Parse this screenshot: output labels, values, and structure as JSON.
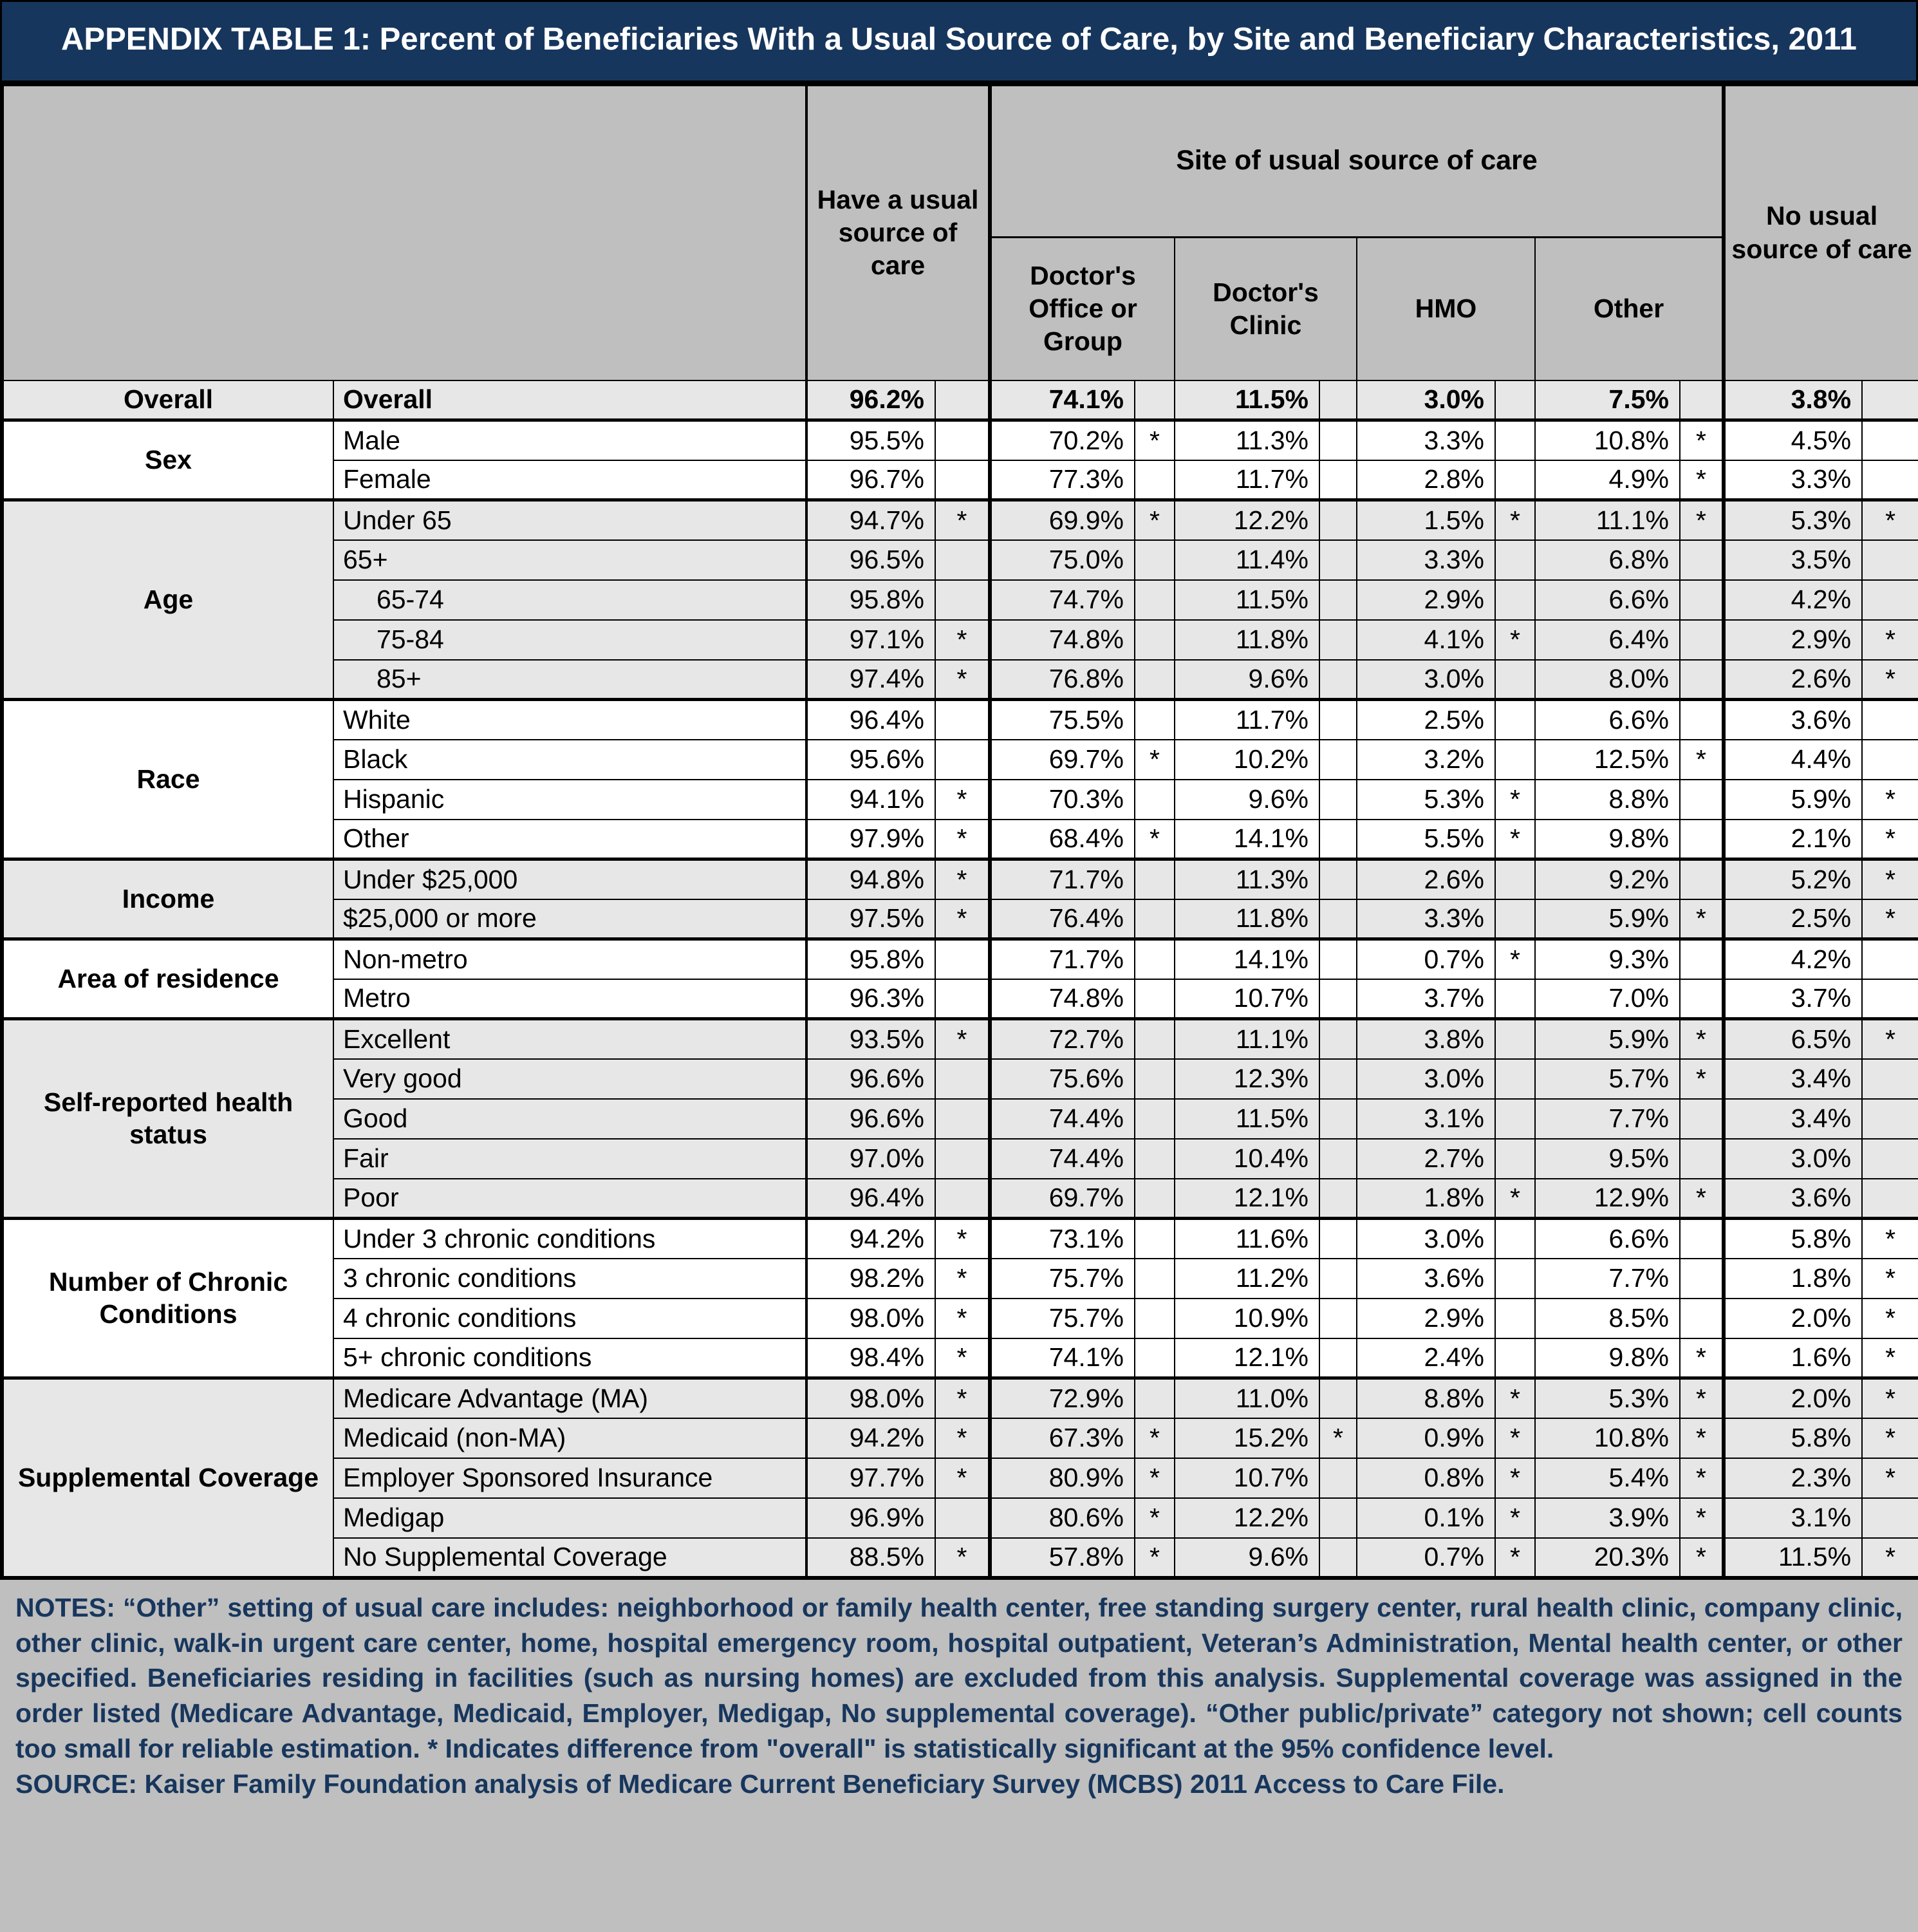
{
  "title": "APPENDIX TABLE 1: Percent of Beneficiaries With a Usual Source of Care, by Site and Beneficiary Characteristics, 2011",
  "colors": {
    "title_bg": "#17365D",
    "title_text": "#FFFFFF",
    "header_bg": "#BFBFBF",
    "shaded_row_bg": "#E7E7E7",
    "notes_bg": "#BFBFBF",
    "notes_text": "#17365D",
    "border": "#000000"
  },
  "table": {
    "header": {
      "usual": "Have a usual source of care",
      "site_group": "Site of usual source of care",
      "sites": [
        "Doctor's Office or Group",
        "Doctor's Clinic",
        "HMO",
        "Other"
      ],
      "no_usual": "No usual source of care"
    },
    "groups": [
      {
        "label": "Overall",
        "shaded": true,
        "rows": [
          {
            "label": "Overall",
            "bold": true,
            "values": [
              "96.2%",
              "74.1%",
              "11.5%",
              "3.0%",
              "7.5%",
              "3.8%"
            ],
            "stars": [
              "",
              "",
              "",
              "",
              "",
              ""
            ]
          }
        ]
      },
      {
        "label": "Sex",
        "shaded": false,
        "rows": [
          {
            "label": "Male",
            "values": [
              "95.5%",
              "70.2%",
              "11.3%",
              "3.3%",
              "10.8%",
              "4.5%"
            ],
            "stars": [
              "",
              "*",
              "",
              "",
              "*",
              ""
            ]
          },
          {
            "label": "Female",
            "values": [
              "96.7%",
              "77.3%",
              "11.7%",
              "2.8%",
              "4.9%",
              "3.3%"
            ],
            "stars": [
              "",
              "",
              "",
              "",
              "*",
              ""
            ]
          }
        ]
      },
      {
        "label": "Age",
        "shaded": true,
        "rows": [
          {
            "label": "Under 65",
            "values": [
              "94.7%",
              "69.9%",
              "12.2%",
              "1.5%",
              "11.1%",
              "5.3%"
            ],
            "stars": [
              "*",
              "*",
              "",
              "*",
              "*",
              "*"
            ]
          },
          {
            "label": "65+",
            "values": [
              "96.5%",
              "75.0%",
              "11.4%",
              "3.3%",
              "6.8%",
              "3.5%"
            ],
            "stars": [
              "",
              "",
              "",
              "",
              "",
              ""
            ]
          },
          {
            "label": "65-74",
            "indent": true,
            "values": [
              "95.8%",
              "74.7%",
              "11.5%",
              "2.9%",
              "6.6%",
              "4.2%"
            ],
            "stars": [
              "",
              "",
              "",
              "",
              "",
              ""
            ]
          },
          {
            "label": "75-84",
            "indent": true,
            "values": [
              "97.1%",
              "74.8%",
              "11.8%",
              "4.1%",
              "6.4%",
              "2.9%"
            ],
            "stars": [
              "*",
              "",
              "",
              "*",
              "",
              "*"
            ]
          },
          {
            "label": "85+",
            "indent": true,
            "values": [
              "97.4%",
              "76.8%",
              "9.6%",
              "3.0%",
              "8.0%",
              "2.6%"
            ],
            "stars": [
              "*",
              "",
              "",
              "",
              "",
              "*"
            ]
          }
        ]
      },
      {
        "label": "Race",
        "shaded": false,
        "rows": [
          {
            "label": "White",
            "values": [
              "96.4%",
              "75.5%",
              "11.7%",
              "2.5%",
              "6.6%",
              "3.6%"
            ],
            "stars": [
              "",
              "",
              "",
              "",
              "",
              ""
            ]
          },
          {
            "label": "Black",
            "values": [
              "95.6%",
              "69.7%",
              "10.2%",
              "3.2%",
              "12.5%",
              "4.4%"
            ],
            "stars": [
              "",
              "*",
              "",
              "",
              "*",
              ""
            ]
          },
          {
            "label": "Hispanic",
            "values": [
              "94.1%",
              "70.3%",
              "9.6%",
              "5.3%",
              "8.8%",
              "5.9%"
            ],
            "stars": [
              "*",
              "",
              "",
              "*",
              "",
              "*"
            ]
          },
          {
            "label": "Other",
            "values": [
              "97.9%",
              "68.4%",
              "14.1%",
              "5.5%",
              "9.8%",
              "2.1%"
            ],
            "stars": [
              "*",
              "*",
              "",
              "*",
              "",
              "*"
            ]
          }
        ]
      },
      {
        "label": "Income",
        "shaded": true,
        "rows": [
          {
            "label": "Under $25,000",
            "values": [
              "94.8%",
              "71.7%",
              "11.3%",
              "2.6%",
              "9.2%",
              "5.2%"
            ],
            "stars": [
              "*",
              "",
              "",
              "",
              "",
              "*"
            ]
          },
          {
            "label": "$25,000 or more",
            "values": [
              "97.5%",
              "76.4%",
              "11.8%",
              "3.3%",
              "5.9%",
              "2.5%"
            ],
            "stars": [
              "*",
              "",
              "",
              "",
              "*",
              "*"
            ]
          }
        ]
      },
      {
        "label": "Area of residence",
        "shaded": false,
        "rows": [
          {
            "label": "Non-metro",
            "values": [
              "95.8%",
              "71.7%",
              "14.1%",
              "0.7%",
              "9.3%",
              "4.2%"
            ],
            "stars": [
              "",
              "",
              "",
              "*",
              "",
              ""
            ]
          },
          {
            "label": "Metro",
            "values": [
              "96.3%",
              "74.8%",
              "10.7%",
              "3.7%",
              "7.0%",
              "3.7%"
            ],
            "stars": [
              "",
              "",
              "",
              "",
              "",
              ""
            ]
          }
        ]
      },
      {
        "label": "Self-reported health status",
        "shaded": true,
        "rows": [
          {
            "label": "Excellent",
            "values": [
              "93.5%",
              "72.7%",
              "11.1%",
              "3.8%",
              "5.9%",
              "6.5%"
            ],
            "stars": [
              "*",
              "",
              "",
              "",
              "*",
              "*"
            ]
          },
          {
            "label": "Very good",
            "values": [
              "96.6%",
              "75.6%",
              "12.3%",
              "3.0%",
              "5.7%",
              "3.4%"
            ],
            "stars": [
              "",
              "",
              "",
              "",
              "*",
              ""
            ]
          },
          {
            "label": "Good",
            "values": [
              "96.6%",
              "74.4%",
              "11.5%",
              "3.1%",
              "7.7%",
              "3.4%"
            ],
            "stars": [
              "",
              "",
              "",
              "",
              "",
              ""
            ]
          },
          {
            "label": "Fair",
            "values": [
              "97.0%",
              "74.4%",
              "10.4%",
              "2.7%",
              "9.5%",
              "3.0%"
            ],
            "stars": [
              "",
              "",
              "",
              "",
              "",
              ""
            ]
          },
          {
            "label": "Poor",
            "values": [
              "96.4%",
              "69.7%",
              "12.1%",
              "1.8%",
              "12.9%",
              "3.6%"
            ],
            "stars": [
              "",
              "",
              "",
              "*",
              "*",
              ""
            ]
          }
        ]
      },
      {
        "label": "Number of Chronic Conditions",
        "shaded": false,
        "rows": [
          {
            "label": "Under 3 chronic conditions",
            "values": [
              "94.2%",
              "73.1%",
              "11.6%",
              "3.0%",
              "6.6%",
              "5.8%"
            ],
            "stars": [
              "*",
              "",
              "",
              "",
              "",
              "*"
            ]
          },
          {
            "label": "3 chronic conditions",
            "values": [
              "98.2%",
              "75.7%",
              "11.2%",
              "3.6%",
              "7.7%",
              "1.8%"
            ],
            "stars": [
              "*",
              "",
              "",
              "",
              "",
              "*"
            ]
          },
          {
            "label": "4 chronic conditions",
            "values": [
              "98.0%",
              "75.7%",
              "10.9%",
              "2.9%",
              "8.5%",
              "2.0%"
            ],
            "stars": [
              "*",
              "",
              "",
              "",
              "",
              "*"
            ]
          },
          {
            "label": "5+ chronic conditions",
            "values": [
              "98.4%",
              "74.1%",
              "12.1%",
              "2.4%",
              "9.8%",
              "1.6%"
            ],
            "stars": [
              "*",
              "",
              "",
              "",
              "*",
              "*"
            ]
          }
        ]
      },
      {
        "label": "Supplemental Coverage",
        "shaded": true,
        "rows": [
          {
            "label": "Medicare Advantage (MA)",
            "values": [
              "98.0%",
              "72.9%",
              "11.0%",
              "8.8%",
              "5.3%",
              "2.0%"
            ],
            "stars": [
              "*",
              "",
              "",
              "*",
              "*",
              "*"
            ]
          },
          {
            "label": "Medicaid (non-MA)",
            "values": [
              "94.2%",
              "67.3%",
              "15.2%",
              "0.9%",
              "10.8%",
              "5.8%"
            ],
            "stars": [
              "*",
              "*",
              "*",
              "*",
              "*",
              "*"
            ]
          },
          {
            "label": "Employer Sponsored Insurance",
            "values": [
              "97.7%",
              "80.9%",
              "10.7%",
              "0.8%",
              "5.4%",
              "2.3%"
            ],
            "stars": [
              "*",
              "*",
              "",
              "*",
              "*",
              "*"
            ]
          },
          {
            "label": "Medigap",
            "values": [
              "96.9%",
              "80.6%",
              "12.2%",
              "0.1%",
              "3.9%",
              "3.1%"
            ],
            "stars": [
              "",
              "*",
              "",
              "*",
              "*",
              ""
            ]
          },
          {
            "label": "No Supplemental Coverage",
            "values": [
              "88.5%",
              "57.8%",
              "9.6%",
              "0.7%",
              "20.3%",
              "11.5%"
            ],
            "stars": [
              "*",
              "*",
              "",
              "*",
              "*",
              "*"
            ]
          }
        ]
      }
    ]
  },
  "notes": {
    "text": "NOTES: “Other” setting of usual care includes: neighborhood or family health center, free standing surgery center, rural health clinic, company clinic, other clinic, walk-in urgent care center, home, hospital emergency room, hospital outpatient, Veteran’s Administration, Mental health center, or other specified. Beneficiaries residing in facilities (such as nursing homes) are excluded from this analysis.  Supplemental coverage was assigned in the order listed (Medicare Advantage, Medicaid, Employer, Medigap, No supplemental coverage). “Other public/private” category not shown; cell counts too small for reliable estimation.  * Indicates difference from \"overall\" is statistically significant at the 95% confidence level.",
    "source": "SOURCE: Kaiser Family Foundation analysis of Medicare Current Beneficiary Survey (MCBS) 2011 Access to Care File."
  }
}
